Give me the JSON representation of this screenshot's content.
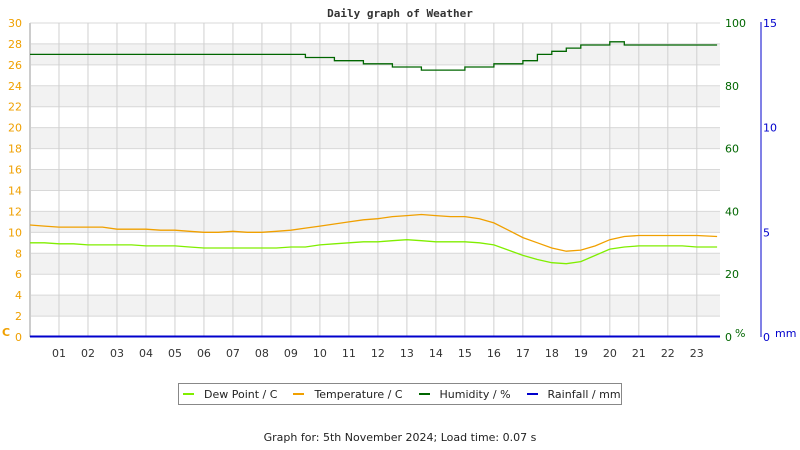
{
  "chart_data": {
    "type": "line",
    "title": "Daily graph of Weather",
    "xlabel": "",
    "x_ticks": [
      "01",
      "02",
      "03",
      "04",
      "05",
      "06",
      "07",
      "08",
      "09",
      "10",
      "11",
      "12",
      "13",
      "14",
      "15",
      "16",
      "17",
      "18",
      "19",
      "20",
      "21",
      "22",
      "23"
    ],
    "axes": {
      "left": {
        "label": "C",
        "ticks": [
          0,
          2,
          4,
          6,
          8,
          10,
          12,
          14,
          16,
          18,
          20,
          22,
          24,
          26,
          28,
          30
        ],
        "range": [
          0,
          30
        ],
        "color": "#f0a000"
      },
      "right": {
        "label": "%",
        "ticks": [
          0,
          20,
          40,
          60,
          80,
          100
        ],
        "range": [
          0,
          100
        ],
        "color": "#006600"
      },
      "far_right": {
        "label": "mm",
        "ticks": [
          0,
          5,
          10,
          15
        ],
        "range": [
          0,
          15
        ],
        "color": "#0000cc"
      }
    },
    "grid": true,
    "legend_position": "bottom",
    "hours": [
      0,
      0.5,
      1,
      1.5,
      2,
      2.5,
      3,
      3.5,
      4,
      4.5,
      5,
      5.5,
      6,
      6.5,
      7,
      7.5,
      8,
      8.5,
      9,
      9.5,
      10,
      10.5,
      11,
      11.5,
      12,
      12.5,
      13,
      13.5,
      14,
      14.5,
      15,
      15.5,
      16,
      16.5,
      17,
      17.5,
      18,
      18.5,
      19,
      19.5,
      20,
      20.5,
      21,
      21.5,
      22,
      22.5,
      23,
      23.7
    ],
    "series": [
      {
        "name": "Dew Point / C",
        "color": "#80ee00",
        "axis": "left",
        "values": [
          9.0,
          9.0,
          8.9,
          8.9,
          8.8,
          8.8,
          8.8,
          8.8,
          8.7,
          8.7,
          8.7,
          8.6,
          8.5,
          8.5,
          8.5,
          8.5,
          8.5,
          8.5,
          8.6,
          8.6,
          8.8,
          8.9,
          9.0,
          9.1,
          9.1,
          9.2,
          9.3,
          9.2,
          9.1,
          9.1,
          9.1,
          9.0,
          8.8,
          8.3,
          7.8,
          7.4,
          7.1,
          7.0,
          7.2,
          7.8,
          8.4,
          8.6,
          8.7,
          8.7,
          8.7,
          8.7,
          8.6,
          8.6
        ]
      },
      {
        "name": "Temperature / C",
        "color": "#f0a000",
        "axis": "left",
        "values": [
          10.7,
          10.6,
          10.5,
          10.5,
          10.5,
          10.5,
          10.3,
          10.3,
          10.3,
          10.2,
          10.2,
          10.1,
          10.0,
          10.0,
          10.1,
          10.0,
          10.0,
          10.1,
          10.2,
          10.4,
          10.6,
          10.8,
          11.0,
          11.2,
          11.3,
          11.5,
          11.6,
          11.7,
          11.6,
          11.5,
          11.5,
          11.3,
          10.9,
          10.2,
          9.5,
          9.0,
          8.5,
          8.2,
          8.3,
          8.7,
          9.3,
          9.6,
          9.7,
          9.7,
          9.7,
          9.7,
          9.7,
          9.6
        ]
      },
      {
        "name": "Humidity / %",
        "color": "#006600",
        "axis": "right",
        "values": [
          90,
          90,
          90,
          90,
          90,
          90,
          90,
          90,
          90,
          90,
          90,
          90,
          90,
          90,
          90,
          90,
          90,
          90,
          90,
          89,
          89,
          88,
          88,
          87,
          87,
          86,
          86,
          85,
          85,
          85,
          86,
          86,
          87,
          87,
          88,
          90,
          91,
          92,
          93,
          93,
          94,
          93,
          93,
          93,
          93,
          93,
          93,
          93
        ]
      },
      {
        "name": "Rainfall / mm",
        "color": "#0000cc",
        "axis": "far_right",
        "values": [
          0,
          0,
          0,
          0,
          0,
          0,
          0,
          0,
          0,
          0,
          0,
          0,
          0,
          0,
          0,
          0,
          0,
          0,
          0,
          0,
          0,
          0,
          0,
          0,
          0,
          0,
          0,
          0,
          0,
          0,
          0,
          0,
          0,
          0,
          0,
          0,
          0,
          0,
          0,
          0,
          0,
          0,
          0,
          0,
          0,
          0,
          0,
          0
        ]
      }
    ]
  },
  "legend": {
    "items": [
      {
        "label": "Dew Point / C",
        "color": "#80ee00"
      },
      {
        "label": "Temperature / C",
        "color": "#f0a000"
      },
      {
        "label": "Humidity / %",
        "color": "#006600"
      },
      {
        "label": "Rainfall / mm",
        "color": "#0000cc"
      }
    ]
  },
  "footer": {
    "text": "Graph for: 5th November 2024; Load time: 0.07 s"
  }
}
